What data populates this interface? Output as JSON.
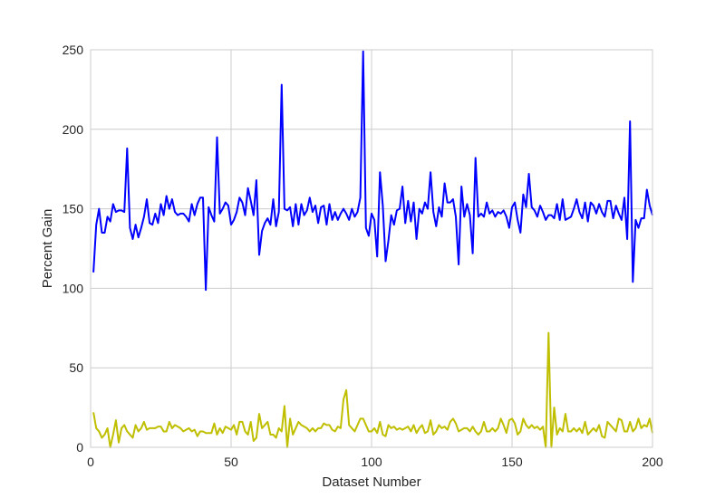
{
  "chart_data": {
    "type": "line",
    "xlabel": "Dataset Number",
    "ylabel": "Percent Gain",
    "xlim": [
      0,
      200
    ],
    "ylim": [
      0,
      250
    ],
    "xticks": [
      0,
      50,
      100,
      150,
      200
    ],
    "yticks": [
      0,
      50,
      100,
      150,
      200,
      250
    ],
    "grid": true,
    "series": [
      {
        "color": "#0000ff",
        "x": [
          1,
          2,
          3,
          4,
          5,
          6,
          7,
          8,
          9,
          10,
          11,
          12,
          13,
          14,
          15,
          16,
          17,
          18,
          19,
          20,
          21,
          22,
          23,
          24,
          25,
          26,
          27,
          28,
          29,
          30,
          31,
          32,
          33,
          34,
          35,
          36,
          37,
          38,
          39,
          40,
          41,
          42,
          43,
          44,
          45,
          46,
          47,
          48,
          49,
          50,
          51,
          52,
          53,
          54,
          55,
          56,
          57,
          58,
          59,
          60,
          61,
          62,
          63,
          64,
          65,
          66,
          67,
          68,
          69,
          70,
          71,
          72,
          73,
          74,
          75,
          76,
          77,
          78,
          79,
          80,
          81,
          82,
          83,
          84,
          85,
          86,
          87,
          88,
          89,
          90,
          91,
          92,
          93,
          94,
          95,
          96,
          97,
          98,
          99,
          100,
          101,
          102,
          103,
          104,
          105,
          106,
          107,
          108,
          109,
          110,
          111,
          112,
          113,
          114,
          115,
          116,
          117,
          118,
          119,
          120,
          121,
          122,
          123,
          124,
          125,
          126,
          127,
          128,
          129,
          130,
          131,
          132,
          133,
          134,
          135,
          136,
          137,
          138,
          139,
          140,
          141,
          142,
          143,
          144,
          145,
          146,
          147,
          148,
          149,
          150,
          151,
          152,
          153,
          154,
          155,
          156,
          157,
          158,
          159,
          160,
          161,
          162,
          163,
          164,
          165,
          166,
          167,
          168,
          169,
          170,
          171,
          172,
          173,
          174,
          175,
          176,
          177,
          178,
          179,
          180,
          181,
          182,
          183,
          184,
          185,
          186,
          187,
          188,
          189,
          190,
          191,
          192,
          193,
          194,
          195,
          196,
          197,
          198,
          199,
          200
        ],
        "y": [
          110,
          140,
          150,
          135,
          135,
          145,
          142,
          153,
          148,
          149,
          149,
          148,
          188,
          138,
          131,
          140,
          132,
          138,
          145,
          156,
          141,
          140,
          147,
          141,
          153,
          146,
          158,
          150,
          156,
          148,
          146,
          147,
          147,
          145,
          142,
          153,
          146,
          153,
          157,
          157,
          99,
          151,
          146,
          142,
          195,
          147,
          150,
          154,
          152,
          140,
          143,
          148,
          157,
          154,
          146,
          163,
          155,
          146,
          168,
          121,
          136,
          141,
          144,
          140,
          156,
          139,
          148,
          228,
          150,
          149,
          151,
          139,
          153,
          140,
          153,
          146,
          149,
          157,
          148,
          152,
          141,
          151,
          152,
          140,
          153,
          143,
          148,
          143,
          147,
          150,
          147,
          143,
          150,
          145,
          148,
          157,
          249,
          138,
          133,
          147,
          143,
          120,
          173,
          152,
          117,
          130,
          146,
          140,
          149,
          150,
          164,
          141,
          155,
          142,
          154,
          131,
          150,
          147,
          154,
          150,
          173,
          148,
          139,
          151,
          145,
          166,
          154,
          154,
          156,
          145,
          115,
          164,
          145,
          153,
          146,
          122,
          182,
          145,
          147,
          145,
          154,
          147,
          149,
          145,
          148,
          147,
          149,
          145,
          138,
          151,
          154,
          143,
          135,
          159,
          151,
          172,
          151,
          149,
          145,
          152,
          148,
          143,
          146,
          146,
          144,
          153,
          143,
          156,
          143,
          144,
          145,
          150,
          156,
          148,
          144,
          154,
          142,
          154,
          152,
          147,
          153,
          148,
          145,
          155,
          155,
          144,
          152,
          147,
          143,
          157,
          131,
          205,
          104,
          143,
          138,
          144,
          144,
          162,
          152,
          146
        ],
        "style": "solid"
      },
      {
        "color": "#bfbf00",
        "x": [
          1,
          2,
          3,
          4,
          5,
          6,
          7,
          8,
          9,
          10,
          11,
          12,
          13,
          14,
          15,
          16,
          17,
          18,
          19,
          20,
          21,
          22,
          23,
          24,
          25,
          26,
          27,
          28,
          29,
          30,
          31,
          32,
          33,
          34,
          35,
          36,
          37,
          38,
          39,
          40,
          41,
          42,
          43,
          44,
          45,
          46,
          47,
          48,
          49,
          50,
          51,
          52,
          53,
          54,
          55,
          56,
          57,
          58,
          59,
          60,
          61,
          62,
          63,
          64,
          65,
          66,
          67,
          68,
          69,
          70,
          71,
          72,
          73,
          74,
          75,
          76,
          77,
          78,
          79,
          80,
          81,
          82,
          83,
          84,
          85,
          86,
          87,
          88,
          89,
          90,
          91,
          92,
          93,
          94,
          95,
          96,
          97,
          98,
          99,
          100,
          101,
          102,
          103,
          104,
          105,
          106,
          107,
          108,
          109,
          110,
          111,
          112,
          113,
          114,
          115,
          116,
          117,
          118,
          119,
          120,
          121,
          122,
          123,
          124,
          125,
          126,
          127,
          128,
          129,
          130,
          131,
          132,
          133,
          134,
          135,
          136,
          137,
          138,
          139,
          140,
          141,
          142,
          143,
          144,
          145,
          146,
          147,
          148,
          149,
          150,
          151,
          152,
          153,
          154,
          155,
          156,
          157,
          158,
          159,
          160,
          161,
          162,
          163,
          164,
          165,
          166,
          167,
          168,
          169,
          170,
          171,
          172,
          173,
          174,
          175,
          176,
          177,
          178,
          179,
          180,
          181,
          182,
          183,
          184,
          185,
          186,
          187,
          188,
          189,
          190,
          191,
          192,
          193,
          194,
          195,
          196,
          197,
          198,
          199,
          200
        ],
        "y": [
          22,
          12,
          10,
          6,
          8,
          12,
          0,
          8,
          17,
          3,
          12,
          14,
          10,
          8,
          6,
          14,
          10,
          12,
          16,
          11,
          12,
          12,
          12,
          13,
          13,
          10,
          10,
          16,
          12,
          14,
          13,
          12,
          10,
          11,
          12,
          10,
          11,
          7,
          10,
          10,
          9,
          9,
          9,
          15,
          8,
          12,
          9,
          13,
          12,
          11,
          14,
          8,
          16,
          16,
          10,
          8,
          16,
          4,
          6,
          21,
          12,
          14,
          16,
          8,
          8,
          6,
          12,
          10,
          26,
          0,
          18,
          8,
          12,
          16,
          14,
          13,
          12,
          10,
          12,
          10,
          12,
          12,
          15,
          14,
          14,
          11,
          10,
          13,
          12,
          30,
          36,
          14,
          12,
          10,
          14,
          18,
          18,
          14,
          10,
          10,
          12,
          9,
          16,
          8,
          7,
          14,
          12,
          13,
          11,
          12,
          11,
          12,
          13,
          10,
          14,
          9,
          12,
          14,
          9,
          10,
          17,
          8,
          10,
          14,
          12,
          13,
          11,
          16,
          18,
          15,
          10,
          11,
          12,
          12,
          10,
          13,
          10,
          8,
          10,
          16,
          10,
          10,
          12,
          10,
          12,
          18,
          14,
          9,
          17,
          18,
          15,
          8,
          10,
          18,
          14,
          12,
          14,
          12,
          13,
          11,
          13,
          0,
          72,
          0,
          25,
          8,
          12,
          10,
          21,
          10,
          10,
          12,
          10,
          12,
          9,
          16,
          8,
          10,
          12,
          10,
          14,
          7,
          6,
          16,
          14,
          12,
          10,
          18,
          17,
          10,
          10,
          16,
          10,
          12,
          18,
          12,
          14,
          13,
          18,
          9
        ],
        "style": "solid"
      }
    ]
  }
}
